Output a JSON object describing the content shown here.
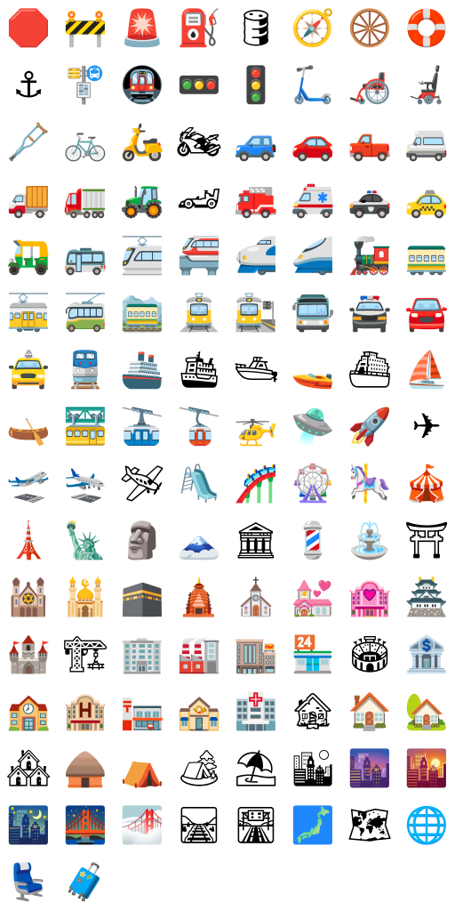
{
  "emojis": [
    {
      "char": "🛑",
      "name": "stop-sign-icon"
    },
    {
      "char": "🚧",
      "name": "construction-barrier-icon"
    },
    {
      "char": "🚨",
      "name": "police-light-icon"
    },
    {
      "char": "⛽",
      "name": "fuel-pump-icon"
    },
    {
      "char": "🛢",
      "name": "oil-drum-icon"
    },
    {
      "char": "🧭",
      "name": "compass-icon"
    },
    {
      "char": "🛞",
      "name": "wheel-icon"
    },
    {
      "char": "🛟",
      "name": "ring-buoy-icon"
    },
    {
      "char": "⚓",
      "name": "anchor-icon"
    },
    {
      "char": "🚏",
      "name": "bus-stop-icon"
    },
    {
      "char": "🚇",
      "name": "metro-icon"
    },
    {
      "char": "🚥",
      "name": "horizontal-traffic-light-icon"
    },
    {
      "char": "🚦",
      "name": "vertical-traffic-light-icon"
    },
    {
      "char": "🛴",
      "name": "kick-scooter-icon"
    },
    {
      "char": "🦽",
      "name": "manual-wheelchair-icon"
    },
    {
      "char": "🦼",
      "name": "motorized-wheelchair-icon"
    },
    {
      "char": "🩼",
      "name": "crutch-icon"
    },
    {
      "char": "🚲",
      "name": "bicycle-icon"
    },
    {
      "char": "🛵",
      "name": "motor-scooter-icon"
    },
    {
      "char": "🏍",
      "name": "motorcycle-icon"
    },
    {
      "char": "🚙",
      "name": "suv-icon"
    },
    {
      "char": "🚗",
      "name": "car-icon"
    },
    {
      "char": "🛻",
      "name": "pickup-truck-icon"
    },
    {
      "char": "🚐",
      "name": "minibus-icon"
    },
    {
      "char": "🚚",
      "name": "delivery-truck-icon"
    },
    {
      "char": "🚛",
      "name": "articulated-lorry-icon"
    },
    {
      "char": "🚜",
      "name": "tractor-icon"
    },
    {
      "char": "🏎",
      "name": "racing-car-icon"
    },
    {
      "char": "🚒",
      "name": "fire-engine-icon"
    },
    {
      "char": "🚑",
      "name": "ambulance-icon"
    },
    {
      "char": "🚓",
      "name": "police-car-icon"
    },
    {
      "char": "🚕",
      "name": "taxi-icon"
    },
    {
      "char": "🛺",
      "name": "auto-rickshaw-icon"
    },
    {
      "char": "🚌",
      "name": "bus-icon"
    },
    {
      "char": "🚈",
      "name": "light-rail-icon"
    },
    {
      "char": "🚝",
      "name": "monorail-icon"
    },
    {
      "char": "🚅",
      "name": "bullet-train-icon"
    },
    {
      "char": "🚄",
      "name": "high-speed-train-icon"
    },
    {
      "char": "🚂",
      "name": "locomotive-icon"
    },
    {
      "char": "🚃",
      "name": "railway-car-icon"
    },
    {
      "char": "🚋",
      "name": "tram-car-icon"
    },
    {
      "char": "🚎",
      "name": "trolleybus-icon"
    },
    {
      "char": "🚞",
      "name": "mountain-railway-icon"
    },
    {
      "char": "🚊",
      "name": "tram-icon"
    },
    {
      "char": "🚉",
      "name": "station-icon"
    },
    {
      "char": "🚍",
      "name": "oncoming-bus-icon"
    },
    {
      "char": "🚔",
      "name": "oncoming-police-car-icon"
    },
    {
      "char": "🚘",
      "name": "oncoming-automobile-icon"
    },
    {
      "char": "🚖",
      "name": "oncoming-taxi-icon"
    },
    {
      "char": "🚆",
      "name": "train-icon"
    },
    {
      "char": "🚢",
      "name": "ship-icon"
    },
    {
      "char": "🛳",
      "name": "passenger-ship-icon"
    },
    {
      "char": "🛥",
      "name": "motor-boat-icon"
    },
    {
      "char": "🚤",
      "name": "speedboat-icon"
    },
    {
      "char": "⛴",
      "name": "ferry-icon"
    },
    {
      "char": "⛵",
      "name": "sailboat-icon"
    },
    {
      "char": "🛶",
      "name": "canoe-icon"
    },
    {
      "char": "🚟",
      "name": "suspension-railway-icon"
    },
    {
      "char": "🚠",
      "name": "mountain-cableway-icon"
    },
    {
      "char": "🚡",
      "name": "aerial-tramway-icon"
    },
    {
      "char": "🚁",
      "name": "helicopter-icon"
    },
    {
      "char": "🛸",
      "name": "flying-saucer-icon"
    },
    {
      "char": "🚀",
      "name": "rocket-icon"
    },
    {
      "char": "✈",
      "name": "airplane-icon"
    },
    {
      "char": "🛫",
      "name": "airplane-departure-icon"
    },
    {
      "char": "🛬",
      "name": "airplane-arrival-icon"
    },
    {
      "char": "🛩",
      "name": "small-airplane-icon"
    },
    {
      "char": "🛝",
      "name": "playground-slide-icon"
    },
    {
      "char": "🎢",
      "name": "roller-coaster-icon"
    },
    {
      "char": "🎡",
      "name": "ferris-wheel-icon"
    },
    {
      "char": "🎠",
      "name": "carousel-horse-icon"
    },
    {
      "char": "🎪",
      "name": "circus-tent-icon"
    },
    {
      "char": "🗼",
      "name": "tokyo-tower-icon"
    },
    {
      "char": "🗽",
      "name": "statue-of-liberty-icon"
    },
    {
      "char": "🗿",
      "name": "moai-icon"
    },
    {
      "char": "🗻",
      "name": "mount-fuji-icon"
    },
    {
      "char": "🏛",
      "name": "classical-building-icon"
    },
    {
      "char": "💈",
      "name": "barber-pole-icon"
    },
    {
      "char": "⛲",
      "name": "fountain-icon"
    },
    {
      "char": "⛩",
      "name": "shinto-shrine-icon"
    },
    {
      "char": "🕍",
      "name": "synagogue-icon"
    },
    {
      "char": "🕌",
      "name": "mosque-icon"
    },
    {
      "char": "🕋",
      "name": "kaaba-icon"
    },
    {
      "char": "🛕",
      "name": "hindu-temple-icon"
    },
    {
      "char": "⛪",
      "name": "church-icon"
    },
    {
      "char": "💒",
      "name": "wedding-chapel-icon"
    },
    {
      "char": "🏩",
      "name": "love-hotel-icon"
    },
    {
      "char": "🏯",
      "name": "japanese-castle-icon"
    },
    {
      "char": "🏰",
      "name": "castle-icon"
    },
    {
      "char": "🏗",
      "name": "building-construction-icon"
    },
    {
      "char": "🏢",
      "name": "office-building-icon"
    },
    {
      "char": "🏭",
      "name": "factory-icon"
    },
    {
      "char": "🏬",
      "name": "department-store-icon"
    },
    {
      "char": "🏪",
      "name": "convenience-store-icon"
    },
    {
      "char": "🏟",
      "name": "stadium-icon"
    },
    {
      "char": "🏦",
      "name": "bank-icon"
    },
    {
      "char": "🏫",
      "name": "school-icon"
    },
    {
      "char": "🏨",
      "name": "hotel-icon"
    },
    {
      "char": "🏣",
      "name": "japanese-post-office-icon"
    },
    {
      "char": "🏤",
      "name": "post-office-icon"
    },
    {
      "char": "🏥",
      "name": "hospital-icon"
    },
    {
      "char": "🏚",
      "name": "derelict-house-icon"
    },
    {
      "char": "🏠",
      "name": "house-icon"
    },
    {
      "char": "🏡",
      "name": "house-with-garden-icon"
    },
    {
      "char": "🏘",
      "name": "houses-icon"
    },
    {
      "char": "🛖",
      "name": "hut-icon"
    },
    {
      "char": "⛺",
      "name": "tent-icon"
    },
    {
      "char": "🏕",
      "name": "camping-icon"
    },
    {
      "char": "⛱",
      "name": "beach-umbrella-icon"
    },
    {
      "char": "🏙",
      "name": "cityscape-icon"
    },
    {
      "char": "🌆",
      "name": "cityscape-at-dusk-icon"
    },
    {
      "char": "🌇",
      "name": "sunset-over-buildings-icon"
    },
    {
      "char": "🌃",
      "name": "night-with-stars-icon"
    },
    {
      "char": "🌉",
      "name": "bridge-at-night-icon"
    },
    {
      "char": "🌁",
      "name": "foggy-icon"
    },
    {
      "char": "🛤",
      "name": "railway-track-icon"
    },
    {
      "char": "🛣",
      "name": "motorway-icon"
    },
    {
      "char": "🗾",
      "name": "map-of-japan-icon"
    },
    {
      "char": "🗺",
      "name": "world-map-icon"
    },
    {
      "char": "🌐",
      "name": "globe-with-meridians-icon"
    },
    {
      "char": "💺",
      "name": "seat-icon"
    },
    {
      "char": "🧳",
      "name": "luggage-icon"
    }
  ]
}
